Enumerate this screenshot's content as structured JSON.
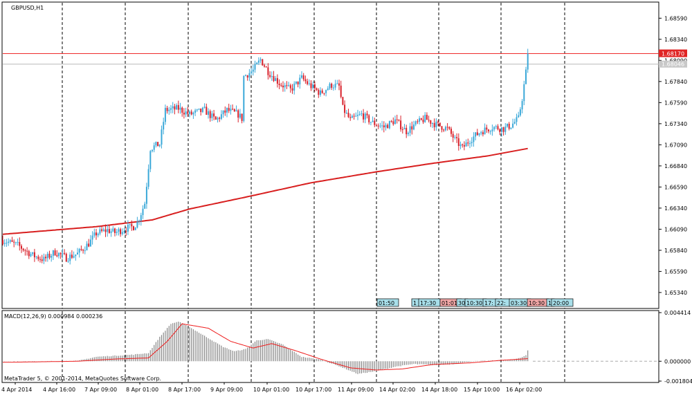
{
  "window": {
    "symbol_title": "GBPUSD,H1",
    "copyright": "MetaTrader 5, © 2001-2014, MetaQuotes Software Corp."
  },
  "colors": {
    "bull": "#3aa8d8",
    "bear": "#d8202a",
    "ma": "#d81e1e",
    "signal": "#ee1b1b",
    "histogram": "#888888",
    "price_line_current": "#ee2a2a",
    "price_line_bid": "#b8b8b8",
    "tag_fill": "#a8dfea",
    "tag_fill_red": "#f1a6a6",
    "badge_red": "#e02424",
    "badge_gray": "#c8c8c8"
  },
  "chart_data": [
    {
      "type": "candlestick",
      "title": "GBPUSD,H1",
      "y_ticks": [
        "1.68590",
        "1.68340",
        "1.68090",
        "1.67840",
        "1.67590",
        "1.67340",
        "1.67090",
        "1.66840",
        "1.66590",
        "1.66340",
        "1.66090",
        "1.65840",
        "1.65590",
        "1.65340"
      ],
      "ylim": [
        1.652,
        1.6874
      ],
      "price_lines": {
        "current": "1.68170",
        "bid": "1.68046"
      },
      "x_ticks": [
        "4 Apr 2014",
        "4 Apr 16:00",
        "7 Apr 09:00",
        "8 Apr 01:00",
        "8 Apr 17:00",
        "9 Apr 09:00",
        "10 Apr 01:00",
        "10 Apr 17:00",
        "11 Apr 09:00",
        "14 Apr 02:00",
        "14 Apr 18:00",
        "15 Apr 10:00",
        "16 Apr 02:00"
      ],
      "anchors": [
        [
          0,
          1.6596
        ],
        [
          8,
          1.659
        ],
        [
          16,
          1.6578
        ],
        [
          22,
          1.6573
        ],
        [
          28,
          1.6582
        ],
        [
          34,
          1.6575
        ],
        [
          40,
          1.658
        ],
        [
          46,
          1.6592
        ],
        [
          50,
          1.6604
        ],
        [
          56,
          1.6608
        ],
        [
          60,
          1.6605
        ],
        [
          66,
          1.661
        ],
        [
          70,
          1.6612
        ],
        [
          72,
          1.6617
        ],
        [
          74,
          1.6628
        ],
        [
          76,
          1.664
        ],
        [
          79,
          1.6705
        ],
        [
          84,
          1.671
        ],
        [
          87,
          1.675
        ],
        [
          94,
          1.6752
        ],
        [
          100,
          1.6745
        ],
        [
          108,
          1.675
        ],
        [
          114,
          1.6738
        ],
        [
          120,
          1.675
        ],
        [
          126,
          1.6745
        ],
        [
          128,
          1.674
        ],
        [
          129,
          1.679
        ],
        [
          134,
          1.6797
        ],
        [
          138,
          1.681
        ],
        [
          142,
          1.6796
        ],
        [
          148,
          1.6782
        ],
        [
          154,
          1.6774
        ],
        [
          160,
          1.6788
        ],
        [
          164,
          1.678
        ],
        [
          170,
          1.677
        ],
        [
          176,
          1.678
        ],
        [
          180,
          1.6778
        ],
        [
          182,
          1.6752
        ],
        [
          186,
          1.6738
        ],
        [
          192,
          1.6745
        ],
        [
          198,
          1.6735
        ],
        [
          204,
          1.673
        ],
        [
          210,
          1.6738
        ],
        [
          216,
          1.6725
        ],
        [
          220,
          1.6732
        ],
        [
          226,
          1.674
        ],
        [
          232,
          1.6733
        ],
        [
          238,
          1.6728
        ],
        [
          242,
          1.6715
        ],
        [
          246,
          1.6705
        ],
        [
          250,
          1.6715
        ],
        [
          256,
          1.6725
        ],
        [
          262,
          1.673
        ],
        [
          268,
          1.6728
        ],
        [
          272,
          1.6732
        ],
        [
          276,
          1.674
        ],
        [
          278,
          1.6764
        ],
        [
          280,
          1.6795
        ],
        [
          281,
          1.6817
        ]
      ],
      "ma_period": "200",
      "ma_points": [
        [
          0,
          1.6603
        ],
        [
          50,
          1.6612
        ],
        [
          80,
          1.662
        ],
        [
          100,
          1.6633
        ],
        [
          130,
          1.6647
        ],
        [
          165,
          1.6664
        ],
        [
          200,
          1.6677
        ],
        [
          230,
          1.6687
        ],
        [
          260,
          1.6696
        ],
        [
          282,
          1.6705
        ]
      ]
    },
    {
      "type": "macd",
      "label": "MACD(12,26,9) 0.000984 0.000236",
      "y_ticks": [
        "0.004414",
        "0.000000",
        "-0.001804"
      ],
      "ylim": [
        -0.001804,
        0.004414
      ],
      "histogram_anchors": [
        [
          0,
          0.0
        ],
        [
          20,
          -1e-05
        ],
        [
          40,
          3e-05
        ],
        [
          50,
          0.0004
        ],
        [
          70,
          0.0006
        ],
        [
          78,
          0.00075
        ],
        [
          84,
          0.0022
        ],
        [
          90,
          0.0034
        ],
        [
          94,
          0.0036
        ],
        [
          100,
          0.0031
        ],
        [
          110,
          0.0021
        ],
        [
          118,
          0.0013
        ],
        [
          124,
          0.0009
        ],
        [
          130,
          0.0011
        ],
        [
          136,
          0.0019
        ],
        [
          142,
          0.002
        ],
        [
          150,
          0.0015
        ],
        [
          160,
          0.0004
        ],
        [
          170,
          0.00015
        ],
        [
          180,
          -0.00045
        ],
        [
          190,
          -0.00115
        ],
        [
          200,
          -0.0009
        ],
        [
          210,
          -0.0005
        ],
        [
          220,
          -0.00025
        ],
        [
          232,
          -0.00035
        ],
        [
          242,
          -0.00025
        ],
        [
          252,
          0.0
        ],
        [
          262,
          5e-05
        ],
        [
          272,
          0.0001
        ],
        [
          278,
          0.00035
        ],
        [
          280,
          0.00055
        ],
        [
          281,
          0.000984
        ]
      ],
      "signal_anchors": [
        [
          0,
          -0.0001
        ],
        [
          40,
          0.0
        ],
        [
          60,
          0.0002
        ],
        [
          78,
          0.0003
        ],
        [
          88,
          0.0018
        ],
        [
          96,
          0.0034
        ],
        [
          110,
          0.003
        ],
        [
          122,
          0.0018
        ],
        [
          134,
          0.0012
        ],
        [
          144,
          0.0016
        ],
        [
          156,
          0.001
        ],
        [
          170,
          0.0002
        ],
        [
          186,
          -0.0006
        ],
        [
          200,
          -0.0008
        ],
        [
          214,
          -0.0007
        ],
        [
          230,
          -0.0003
        ],
        [
          250,
          -0.00015
        ],
        [
          268,
          0.0001
        ],
        [
          281,
          0.000236
        ]
      ]
    }
  ],
  "time_tags": [
    {
      "text": "01:50",
      "fill": "#a8dfea"
    },
    {
      "text": "1",
      "fill": "#a8dfea"
    },
    {
      "text": "17:30",
      "fill": "#a8dfea"
    },
    {
      "text": "01:01",
      "fill": "#f1a6a6"
    },
    {
      "text": "30",
      "fill": "#a8dfea"
    },
    {
      "text": "10:30",
      "fill": "#a8dfea"
    },
    {
      "text": "17:",
      "fill": "#a8dfea"
    },
    {
      "text": "22:",
      "fill": "#a8dfea"
    },
    {
      "text": "03:30",
      "fill": "#a8dfea"
    },
    {
      "text": "10:30",
      "fill": "#f1a6a6"
    },
    {
      "text": "1",
      "fill": "#a8dfea"
    },
    {
      "text": "20:00",
      "fill": "#a8dfea"
    }
  ]
}
